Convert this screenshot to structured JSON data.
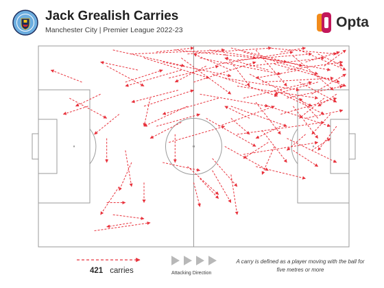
{
  "header": {
    "title": "Jack Grealish Carries",
    "subtitle": "Manchester City | Premier League 2022-23",
    "brand": "Opta",
    "brand_colors": [
      "#f28c1b",
      "#c2185b"
    ]
  },
  "legend": {
    "count": "421",
    "count_label": "carries",
    "direction_label": "Attacking Direction",
    "note": "A carry is defined as a player moving with the ball for five metres or more"
  },
  "colors": {
    "carry": "#e8323c",
    "pitch_line": "#9a9a9a",
    "crest_blue": "#6caddf"
  },
  "chart_data": {
    "type": "scatter",
    "description_units": "pitch coordinates, x 0-100 (defensive to attacking goal line), y 0-100 (top to bottom touchline)",
    "total_carries": 421,
    "xlim": [
      0,
      100
    ],
    "ylim": [
      0,
      100
    ],
    "carries": [
      [
        24,
        2,
        47,
        10
      ],
      [
        30,
        4,
        60,
        2
      ],
      [
        34,
        6,
        55,
        16
      ],
      [
        38,
        3,
        50,
        1
      ],
      [
        40,
        8,
        62,
        15
      ],
      [
        44,
        2,
        70,
        6
      ],
      [
        46,
        12,
        28,
        20
      ],
      [
        48,
        4,
        75,
        1
      ],
      [
        52,
        6,
        78,
        14
      ],
      [
        55,
        2,
        80,
        8
      ],
      [
        58,
        9,
        82,
        3
      ],
      [
        60,
        4,
        68,
        20
      ],
      [
        62,
        1,
        85,
        10
      ],
      [
        64,
        7,
        88,
        4
      ],
      [
        66,
        3,
        90,
        14
      ],
      [
        68,
        10,
        92,
        6
      ],
      [
        70,
        2,
        80,
        20
      ],
      [
        72,
        6,
        94,
        12
      ],
      [
        74,
        1,
        96,
        4
      ],
      [
        76,
        9,
        97,
        18
      ],
      [
        78,
        3,
        86,
        1
      ],
      [
        80,
        12,
        98,
        8
      ],
      [
        82,
        5,
        95,
        22
      ],
      [
        84,
        2,
        99,
        12
      ],
      [
        86,
        8,
        97,
        3
      ],
      [
        88,
        14,
        99,
        20
      ],
      [
        90,
        4,
        98,
        10
      ],
      [
        92,
        10,
        99,
        2
      ],
      [
        56,
        14,
        77,
        25
      ],
      [
        50,
        18,
        70,
        8
      ],
      [
        45,
        22,
        30,
        28
      ],
      [
        60,
        16,
        84,
        22
      ],
      [
        64,
        20,
        90,
        26
      ],
      [
        68,
        14,
        88,
        30
      ],
      [
        72,
        18,
        95,
        16
      ],
      [
        76,
        22,
        92,
        34
      ],
      [
        80,
        26,
        98,
        20
      ],
      [
        84,
        18,
        96,
        28
      ],
      [
        88,
        24,
        99,
        14
      ],
      [
        58,
        26,
        40,
        34
      ],
      [
        52,
        24,
        74,
        30
      ],
      [
        48,
        30,
        34,
        40
      ],
      [
        62,
        30,
        80,
        40
      ],
      [
        66,
        26,
        88,
        18
      ],
      [
        70,
        28,
        78,
        44
      ],
      [
        74,
        30,
        94,
        40
      ],
      [
        78,
        34,
        96,
        26
      ],
      [
        82,
        30,
        90,
        46
      ],
      [
        86,
        36,
        98,
        32
      ],
      [
        54,
        36,
        70,
        50
      ],
      [
        46,
        38,
        36,
        46
      ],
      [
        58,
        40,
        76,
        30
      ],
      [
        64,
        44,
        92,
        38
      ],
      [
        72,
        42,
        80,
        58
      ],
      [
        60,
        50,
        74,
        62
      ],
      [
        66,
        54,
        90,
        48
      ],
      [
        56,
        56,
        64,
        70
      ],
      [
        70,
        60,
        86,
        66
      ],
      [
        76,
        50,
        72,
        64
      ],
      [
        80,
        46,
        96,
        58
      ],
      [
        42,
        48,
        60,
        40
      ],
      [
        38,
        40,
        52,
        34
      ],
      [
        34,
        30,
        50,
        22
      ],
      [
        28,
        18,
        40,
        12
      ],
      [
        22,
        10,
        34,
        20
      ],
      [
        20,
        24,
        12,
        30
      ],
      [
        16,
        30,
        8,
        34
      ],
      [
        26,
        34,
        18,
        44
      ],
      [
        22,
        46,
        22,
        58
      ],
      [
        28,
        52,
        30,
        70
      ],
      [
        30,
        58,
        26,
        72
      ],
      [
        44,
        44,
        44,
        58
      ],
      [
        40,
        58,
        52,
        62
      ],
      [
        48,
        60,
        58,
        74
      ],
      [
        52,
        66,
        58,
        76
      ],
      [
        56,
        62,
        62,
        78
      ],
      [
        62,
        64,
        64,
        84
      ],
      [
        50,
        68,
        52,
        80
      ],
      [
        36,
        26,
        34,
        40
      ],
      [
        22,
        78,
        28,
        78
      ],
      [
        26,
        70,
        20,
        84
      ],
      [
        24,
        84,
        34,
        86
      ],
      [
        30,
        88,
        22,
        90
      ],
      [
        18,
        92,
        36,
        88
      ],
      [
        34,
        68,
        34,
        78
      ],
      [
        14,
        18,
        4,
        12
      ],
      [
        10,
        26,
        22,
        36
      ],
      [
        32,
        12,
        20,
        8
      ],
      [
        42,
        16,
        58,
        10
      ],
      [
        46,
        6,
        62,
        24
      ],
      [
        54,
        10,
        44,
        18
      ],
      [
        62,
        12,
        50,
        4
      ],
      [
        74,
        12,
        60,
        6
      ],
      [
        84,
        12,
        70,
        16
      ],
      [
        90,
        18,
        76,
        24
      ],
      [
        92,
        26,
        84,
        36
      ],
      [
        94,
        34,
        88,
        44
      ],
      [
        96,
        24,
        90,
        30
      ],
      [
        78,
        40,
        70,
        46
      ],
      [
        86,
        44,
        80,
        52
      ],
      [
        74,
        48,
        66,
        56
      ],
      [
        82,
        52,
        90,
        60
      ],
      [
        68,
        36,
        60,
        30
      ],
      [
        62,
        36,
        68,
        44
      ],
      [
        90,
        36,
        84,
        26
      ],
      [
        96,
        40,
        90,
        52
      ],
      [
        88,
        52,
        94,
        46
      ]
    ]
  }
}
